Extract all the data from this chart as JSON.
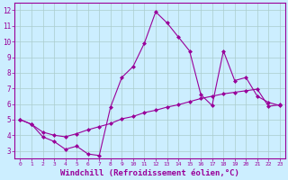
{
  "line1_x": [
    0,
    1,
    2,
    3,
    4,
    5,
    6,
    7,
    8,
    9,
    10,
    11,
    12,
    13,
    14,
    15,
    16,
    17,
    18,
    19,
    20,
    21,
    22,
    23
  ],
  "line1_y": [
    5.0,
    4.7,
    3.9,
    3.6,
    3.1,
    3.3,
    2.8,
    2.7,
    5.8,
    7.7,
    8.4,
    9.9,
    11.9,
    11.2,
    10.3,
    9.4,
    6.6,
    5.9,
    9.4,
    7.5,
    7.7,
    6.5,
    6.1,
    5.9
  ],
  "line2_x": [
    0,
    1,
    2,
    3,
    4,
    5,
    6,
    7,
    8,
    9,
    10,
    11,
    12,
    13,
    14,
    15,
    16,
    17,
    18,
    19,
    20,
    21,
    22,
    23
  ],
  "line2_y": [
    5.0,
    4.7,
    4.2,
    4.0,
    3.9,
    4.1,
    4.35,
    4.55,
    4.75,
    5.05,
    5.2,
    5.45,
    5.6,
    5.8,
    5.95,
    6.15,
    6.35,
    6.5,
    6.65,
    6.75,
    6.85,
    6.95,
    5.85,
    5.95
  ],
  "line_color": "#990099",
  "bg_color": "#cceeff",
  "grid_color": "#aacccc",
  "xlabel": "Windchill (Refroidissement éolien,°C)",
  "ylim": [
    2.5,
    12.5
  ],
  "xlim": [
    -0.5,
    23.5
  ],
  "yticks": [
    3,
    4,
    5,
    6,
    7,
    8,
    9,
    10,
    11,
    12
  ],
  "xticks": [
    0,
    1,
    2,
    3,
    4,
    5,
    6,
    7,
    8,
    9,
    10,
    11,
    12,
    13,
    14,
    15,
    16,
    17,
    18,
    19,
    20,
    21,
    22,
    23
  ]
}
